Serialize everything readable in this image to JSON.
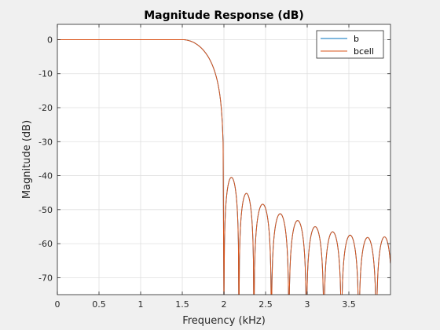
{
  "chart_data": {
    "type": "line",
    "title": "Magnitude Response (dB)",
    "xlabel": "Frequency (kHz)",
    "ylabel": "Magnitude (dB)",
    "xlim": [
      0,
      4
    ],
    "ylim": [
      -75,
      4.5
    ],
    "x_ticks": [
      0,
      0.5,
      1,
      1.5,
      2,
      2.5,
      3,
      3.5
    ],
    "x_tick_labels": [
      "0",
      "0.5",
      "1",
      "1.5",
      "2",
      "2.5",
      "3",
      "3.5"
    ],
    "y_ticks": [
      0,
      -10,
      -20,
      -30,
      -40,
      -50,
      -60,
      -70
    ],
    "y_tick_labels": [
      "0",
      "-10",
      "-20",
      "-30",
      "-40",
      "-50",
      "-60",
      "-70"
    ],
    "grid": true,
    "legend_position": "top-right",
    "passband_edge_khz": 1.5,
    "stopband_nulls_khz": [
      2.0,
      2.18,
      2.36,
      2.57,
      2.78,
      2.99,
      3.2,
      3.41,
      3.62,
      3.83
    ],
    "stopband_lobe_peaks": [
      {
        "x": 2.08,
        "y": -40.5
      },
      {
        "x": 2.26,
        "y": -45.2
      },
      {
        "x": 2.46,
        "y": -48.4
      },
      {
        "x": 2.67,
        "y": -51.2
      },
      {
        "x": 2.88,
        "y": -53.2
      },
      {
        "x": 3.09,
        "y": -55.0
      },
      {
        "x": 3.31,
        "y": -56.5
      },
      {
        "x": 3.52,
        "y": -57.5
      },
      {
        "x": 3.73,
        "y": -58.2
      },
      {
        "x": 3.95,
        "y": -58.0
      }
    ],
    "series": [
      {
        "name": "b",
        "color": "#0072bd"
      },
      {
        "name": "bcell",
        "color": "#d95319"
      }
    ]
  }
}
